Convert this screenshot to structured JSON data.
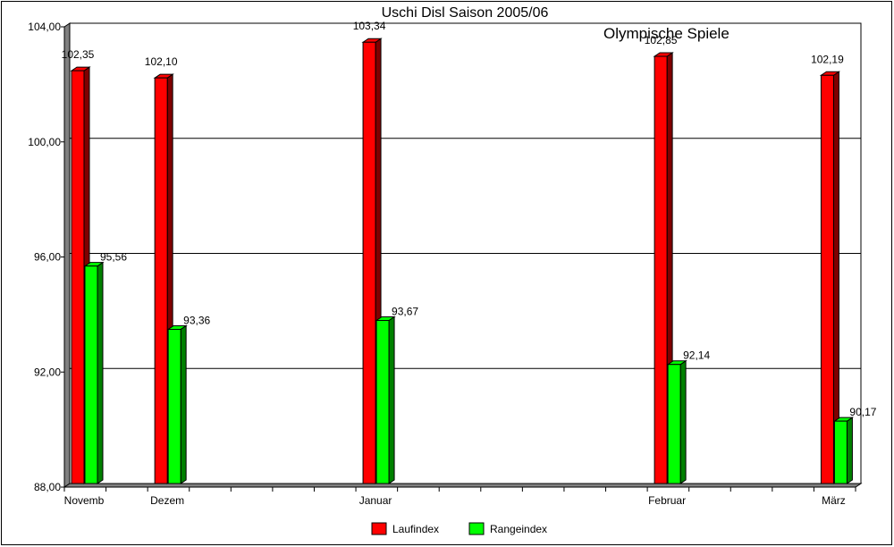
{
  "chart_data": {
    "type": "bar",
    "title": "Uschi Disl Saison 2005/06",
    "annotation": "Olympische Spiele",
    "xlabel": "",
    "ylabel": "",
    "ylim": [
      88,
      104
    ],
    "yticks": [
      "88,00",
      "92,00",
      "96,00",
      "100,00",
      "104,00"
    ],
    "ytick_values": [
      88,
      92,
      96,
      100,
      104
    ],
    "grid": true,
    "legend_position": "bottom",
    "slot_count": 19,
    "categories": [
      {
        "label": "Novemb",
        "slot": 0
      },
      {
        "label": "Dezem",
        "slot": 2
      },
      {
        "label": "Januar",
        "slot": 7
      },
      {
        "label": "Februar",
        "slot": 14
      },
      {
        "label": "März",
        "slot": 18
      }
    ],
    "series": [
      {
        "name": "Laufindex",
        "color": "#ff0000",
        "side_color": "#800000",
        "values": [
          102.35,
          102.1,
          103.34,
          102.85,
          102.19
        ],
        "labels": [
          "102,35",
          "102,10",
          "103,34",
          "102,85",
          "102,19"
        ]
      },
      {
        "name": "Rangeindex",
        "color": "#00ff00",
        "side_color": "#008000",
        "values": [
          95.56,
          93.36,
          93.67,
          92.14,
          90.17
        ],
        "labels": [
          "95,56",
          "93,36",
          "93,67",
          "92,14",
          "90,17"
        ]
      }
    ]
  }
}
